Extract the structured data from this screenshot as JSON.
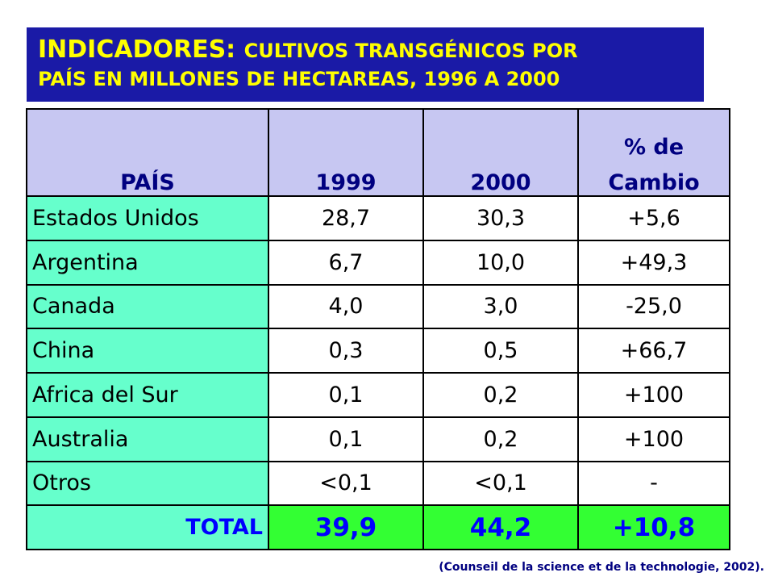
{
  "title": {
    "line1_main": "INDICADORES:",
    "line1_rest": "CULTIVOS TRANSGÉNICOS POR",
    "line2": "PAÍS EN MILLONES DE HECTAREAS, 1996 A 2000"
  },
  "table": {
    "headers": {
      "country": "PAÍS",
      "y1999": "1999",
      "y2000": "2000",
      "change_line1": "% de",
      "change_line2": "Cambio"
    },
    "rows": [
      {
        "country": "Estados Unidos",
        "y1999": "28,7",
        "y2000": "30,3",
        "change": "+5,6"
      },
      {
        "country": "Argentina",
        "y1999": "6,7",
        "y2000": "10,0",
        "change": "+49,3"
      },
      {
        "country": "Canada",
        "y1999": "4,0",
        "y2000": "3,0",
        "change": "-25,0"
      },
      {
        "country": "China",
        "y1999": "0,3",
        "y2000": "0,5",
        "change": "+66,7"
      },
      {
        "country": "Africa del Sur",
        "y1999": "0,1",
        "y2000": "0,2",
        "change": "+100"
      },
      {
        "country": "Australia",
        "y1999": "0,1",
        "y2000": "0,2",
        "change": "+100"
      },
      {
        "country": "Otros",
        "y1999": "<0,1",
        "y2000": "<0,1",
        "change": "-"
      }
    ],
    "total": {
      "label": "TOTAL",
      "y1999": "39,9",
      "y2000": "44,2",
      "change": "+10,8"
    }
  },
  "source": "(Counseil de la science et de la technologie, 2002).",
  "colors": {
    "title_bg": "#1a1aa6",
    "title_text": "#ffff00",
    "header_bg": "#c7c7f2",
    "header_text": "#000080",
    "country_bg": "#66ffcc",
    "total_bg": "#33ff33",
    "total_text": "#0000ff"
  }
}
